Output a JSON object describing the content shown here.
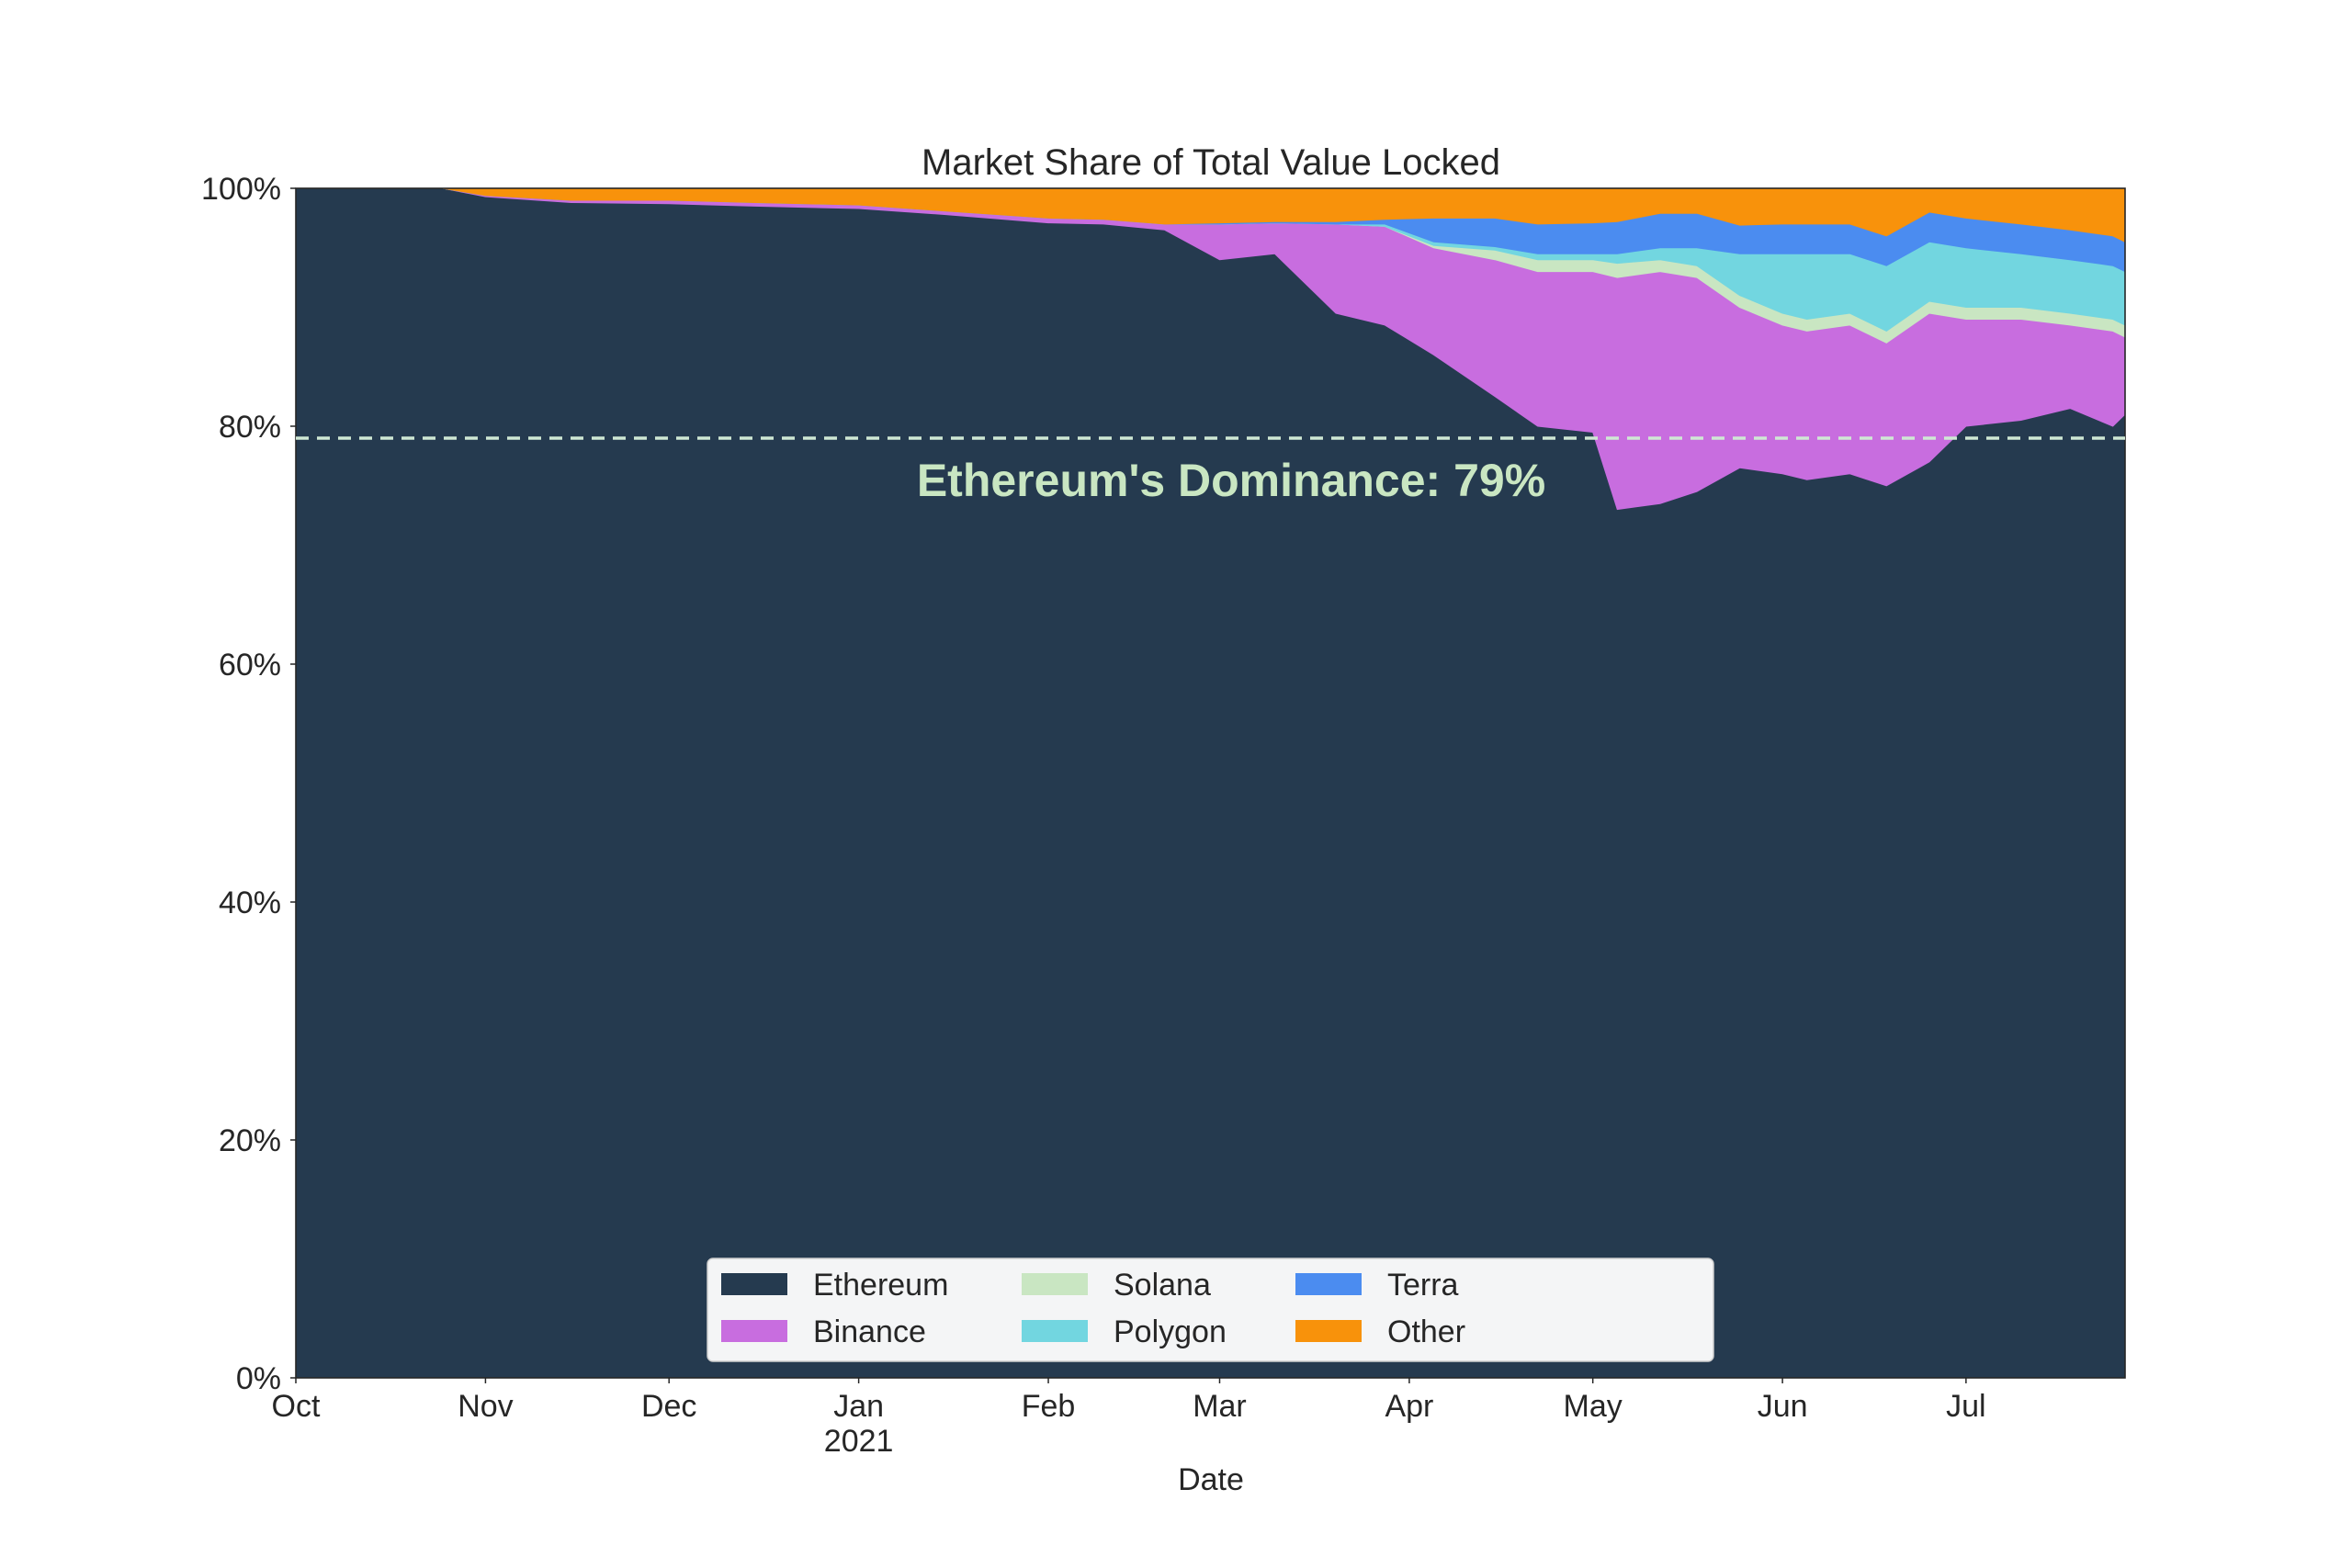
{
  "chart_data": {
    "type": "area",
    "stacked": true,
    "normalized": true,
    "title": "Market Share of Total Value Locked",
    "xlabel": "Date",
    "ylabel": "",
    "x_range": [
      "2020-10-01",
      "2021-07-27"
    ],
    "ylim": [
      0,
      100
    ],
    "y_ticks": [
      {
        "value": 0,
        "label": "0%"
      },
      {
        "value": 20,
        "label": "20%"
      },
      {
        "value": 40,
        "label": "40%"
      },
      {
        "value": 60,
        "label": "60%"
      },
      {
        "value": 80,
        "label": "80%"
      },
      {
        "value": 100,
        "label": "100%"
      }
    ],
    "x_ticks": [
      {
        "date": "2020-10-01",
        "label": "Oct",
        "sublabel": ""
      },
      {
        "date": "2020-11-01",
        "label": "Nov",
        "sublabel": ""
      },
      {
        "date": "2020-12-01",
        "label": "Dec",
        "sublabel": ""
      },
      {
        "date": "2021-01-01",
        "label": "Jan",
        "sublabel": "2021"
      },
      {
        "date": "2021-02-01",
        "label": "Feb",
        "sublabel": ""
      },
      {
        "date": "2021-03-01",
        "label": "Mar",
        "sublabel": ""
      },
      {
        "date": "2021-04-01",
        "label": "Apr",
        "sublabel": ""
      },
      {
        "date": "2021-05-01",
        "label": "May",
        "sublabel": ""
      },
      {
        "date": "2021-06-01",
        "label": "Jun",
        "sublabel": ""
      },
      {
        "date": "2021-07-01",
        "label": "Jul",
        "sublabel": ""
      }
    ],
    "grid": false,
    "legend_placement": "lower-center",
    "legend_columns": 4,
    "x": [
      "2020-10-01",
      "2020-10-25",
      "2020-11-01",
      "2020-11-15",
      "2020-12-01",
      "2020-12-15",
      "2021-01-01",
      "2021-01-15",
      "2021-02-01",
      "2021-02-10",
      "2021-02-20",
      "2021-03-01",
      "2021-03-10",
      "2021-03-20",
      "2021-03-28",
      "2021-04-05",
      "2021-04-15",
      "2021-04-22",
      "2021-05-01",
      "2021-05-05",
      "2021-05-12",
      "2021-05-18",
      "2021-05-25",
      "2021-06-01",
      "2021-06-05",
      "2021-06-12",
      "2021-06-18",
      "2021-06-25",
      "2021-07-01",
      "2021-07-10",
      "2021-07-18",
      "2021-07-25",
      "2021-07-27"
    ],
    "series": [
      {
        "name": "Ethereum",
        "color": "#253a4f",
        "values": [
          100,
          100,
          99.3,
          98.8,
          98.7,
          98.5,
          98.3,
          97.8,
          97.1,
          97.0,
          96.5,
          94.0,
          94.5,
          89.5,
          88.5,
          86.0,
          82.5,
          80.0,
          79.5,
          73.0,
          73.5,
          74.5,
          76.5,
          76.0,
          75.5,
          76.0,
          75.0,
          77.0,
          80.0,
          80.5,
          81.5,
          80.0,
          81.0
        ]
      },
      {
        "name": "Binance",
        "color": "#c86ddf",
        "values": [
          0,
          0,
          0.1,
          0.2,
          0.3,
          0.3,
          0.3,
          0.3,
          0.4,
          0.4,
          0.5,
          3.0,
          2.6,
          7.5,
          8.3,
          9.0,
          11.5,
          13.0,
          13.5,
          19.5,
          19.5,
          18.0,
          13.5,
          12.5,
          12.5,
          12.5,
          12.0,
          12.5,
          9.0,
          8.5,
          7.0,
          8.0,
          6.5
        ]
      },
      {
        "name": "Solana",
        "color": "#c9e6c2",
        "values": [
          0,
          0,
          0,
          0,
          0,
          0,
          0,
          0,
          0,
          0,
          0,
          0,
          0,
          0,
          0,
          0.2,
          0.8,
          1.0,
          1.0,
          1.2,
          1.0,
          1.0,
          1.0,
          1.0,
          1.0,
          1.0,
          1.0,
          1.0,
          1.0,
          1.0,
          1.0,
          1.0,
          1.0
        ]
      },
      {
        "name": "Polygon",
        "color": "#72d6e0",
        "values": [
          0,
          0,
          0,
          0,
          0,
          0,
          0,
          0,
          0,
          0,
          0,
          0,
          0,
          0,
          0.2,
          0.3,
          0.3,
          0.5,
          0.5,
          0.8,
          1.0,
          1.5,
          3.5,
          5.0,
          5.5,
          5.0,
          5.5,
          5.0,
          5.0,
          4.5,
          4.5,
          4.5,
          4.5
        ]
      },
      {
        "name": "Terra",
        "color": "#4b8cf0",
        "values": [
          0,
          0,
          0,
          0,
          0,
          0,
          0,
          0,
          0,
          0,
          0,
          0.1,
          0.1,
          0.2,
          0.4,
          2.0,
          2.4,
          2.5,
          2.6,
          2.7,
          2.9,
          2.9,
          2.4,
          2.5,
          2.5,
          2.5,
          2.5,
          2.5,
          2.5,
          2.5,
          2.5,
          2.5,
          2.5
        ]
      },
      {
        "name": "Other",
        "color": "#f8920b",
        "values": [
          0,
          0,
          0.6,
          1.0,
          1.0,
          1.2,
          1.4,
          1.9,
          2.5,
          2.6,
          3.0,
          2.9,
          2.8,
          2.8,
          2.6,
          2.5,
          2.5,
          3.0,
          2.9,
          2.8,
          2.1,
          2.1,
          3.1,
          3.0,
          3.0,
          3.0,
          4.0,
          2.0,
          2.5,
          3.0,
          3.5,
          4.0,
          4.5
        ]
      }
    ],
    "reference_line": {
      "value": 79,
      "color": "#cfe8d4",
      "style": "dashed"
    },
    "annotation": {
      "text": "Ethereum's Dominance: 79%",
      "color": "#c9e6c2"
    }
  }
}
